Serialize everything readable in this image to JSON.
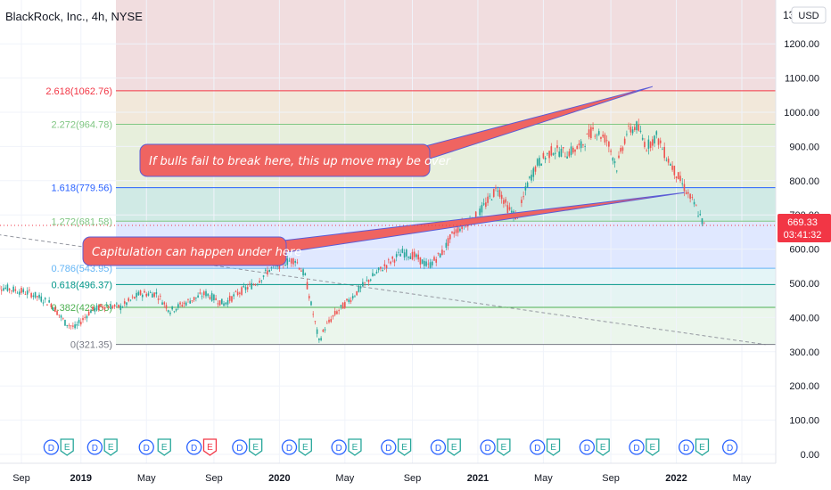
{
  "header": {
    "title": "BlackRock, Inc., 4h, NYSE",
    "currency_button": "USD",
    "currency_prefix": "13"
  },
  "colors": {
    "up": "#26a69a",
    "down": "#ef5350",
    "fib_0": "#787b86",
    "fib_0382": "#4caf50",
    "fib_0618": "#009688",
    "fib_0786": "#64b5f6",
    "fib_1272": "#81c784",
    "fib_1618": "#2962ff",
    "fib_2272": "#81c784",
    "fib_2618": "#f23645",
    "callout_fill": "#ef6461",
    "callout_border": "#5b5bd6",
    "price_tag": "#f23645",
    "dividend": "#2962ff",
    "earnings_up": "#26a69a",
    "earnings_down": "#f23645"
  },
  "chart_data": {
    "type": "line",
    "title": "BlackRock, Inc., 4h, NYSE",
    "xlabel": "",
    "ylabel": "",
    "ylim": [
      0,
      1350
    ],
    "xlim": [
      2018.7,
      2022.45
    ],
    "y_ticks": [
      0,
      100,
      200,
      300,
      400,
      500,
      600,
      700,
      800,
      900,
      1000,
      1100,
      1200
    ],
    "y_tick_labels": [
      "0.00",
      "100.00",
      "200.00",
      "300.00",
      "400.00",
      "500.00",
      "600.00",
      "700.00",
      "800.00",
      "900.00",
      "1000.00",
      "1100.00",
      "1200.00"
    ],
    "x_ticks": [
      {
        "t": 2018.7,
        "label": "Sep",
        "bold": false
      },
      {
        "t": 2019.0,
        "label": "2019",
        "bold": true
      },
      {
        "t": 2019.33,
        "label": "May",
        "bold": false
      },
      {
        "t": 2019.67,
        "label": "Sep",
        "bold": false
      },
      {
        "t": 2020.0,
        "label": "2020",
        "bold": true
      },
      {
        "t": 2020.33,
        "label": "May",
        "bold": false
      },
      {
        "t": 2020.67,
        "label": "Sep",
        "bold": false
      },
      {
        "t": 2021.0,
        "label": "2021",
        "bold": true
      },
      {
        "t": 2021.33,
        "label": "May",
        "bold": false
      },
      {
        "t": 2021.67,
        "label": "Sep",
        "bold": false
      },
      {
        "t": 2022.0,
        "label": "2022",
        "bold": true
      },
      {
        "t": 2022.33,
        "label": "May",
        "bold": false
      }
    ],
    "series": [
      {
        "name": "",
        "x": [
          2018.55,
          2018.75,
          2018.85,
          2018.92,
          2018.97,
          2019.05,
          2019.12,
          2019.2,
          2019.3,
          2019.38,
          2019.45,
          2019.55,
          2019.63,
          2019.72,
          2019.8,
          2019.88,
          2019.95,
          2020.02,
          2020.08,
          2020.13,
          2020.17,
          2020.2,
          2020.23,
          2020.28,
          2020.35,
          2020.45,
          2020.55,
          2020.62,
          2020.68,
          2020.75,
          2020.82,
          2020.88,
          2020.95,
          2021.0,
          2021.05,
          2021.1,
          2021.15,
          2021.2,
          2021.25,
          2021.3,
          2021.38,
          2021.45,
          2021.52,
          2021.58,
          2021.65,
          2021.7,
          2021.75,
          2021.8,
          2021.85,
          2021.9,
          2021.95,
          2022.0,
          2022.05,
          2022.1,
          2022.14
        ],
        "values": [
          495,
          470,
          440,
          385,
          370,
          420,
          435,
          430,
          470,
          470,
          420,
          450,
          470,
          440,
          475,
          500,
          540,
          560,
          570,
          520,
          410,
          330,
          370,
          410,
          450,
          510,
          560,
          590,
          580,
          550,
          590,
          650,
          680,
          700,
          740,
          780,
          720,
          690,
          790,
          850,
          890,
          880,
          900,
          950,
          920,
          840,
          940,
          960,
          900,
          930,
          870,
          820,
          770,
          720,
          669
        ]
      }
    ],
    "fib_levels": [
      {
        "ratio": 0,
        "label": "0(321.35)",
        "value": 321.35
      },
      {
        "ratio": 0.382,
        "label": "0.382(429.53)",
        "value": 429.53
      },
      {
        "ratio": 0.618,
        "label": "0.618(496.37)",
        "value": 496.37
      },
      {
        "ratio": 0.786,
        "label": "0.786(543.95)",
        "value": 543.95
      },
      {
        "ratio": 1.272,
        "label": "1.272(681.58)",
        "value": 681.58
      },
      {
        "ratio": 1.618,
        "label": "1.618(779.56)",
        "value": 779.56
      },
      {
        "ratio": 2.272,
        "label": "2.272(964.78)",
        "value": 964.78
      },
      {
        "ratio": 2.618,
        "label": "2.618(1062.76)",
        "value": 1062.76
      }
    ],
    "annotations": [
      {
        "text": "If bulls fail to break here, this up move may be over",
        "target": {
          "t": 2021.88,
          "v": 1075
        }
      },
      {
        "text": "Capitulation can happen under here",
        "target": {
          "t": 2022.04,
          "v": 765
        }
      }
    ],
    "last_price": {
      "value": 669.33,
      "label": "669.33",
      "countdown": "03:41:32"
    },
    "events": [
      {
        "t": 2018.85,
        "kind": "D"
      },
      {
        "t": 2018.93,
        "kind": "E"
      },
      {
        "t": 2019.07,
        "kind": "D"
      },
      {
        "t": 2019.15,
        "kind": "E"
      },
      {
        "t": 2019.33,
        "kind": "D"
      },
      {
        "t": 2019.42,
        "kind": "E"
      },
      {
        "t": 2019.57,
        "kind": "D"
      },
      {
        "t": 2019.65,
        "kind": "E",
        "negative": true
      },
      {
        "t": 2019.8,
        "kind": "D"
      },
      {
        "t": 2019.88,
        "kind": "E"
      },
      {
        "t": 2020.05,
        "kind": "D"
      },
      {
        "t": 2020.13,
        "kind": "E"
      },
      {
        "t": 2020.3,
        "kind": "D"
      },
      {
        "t": 2020.38,
        "kind": "E"
      },
      {
        "t": 2020.55,
        "kind": "D"
      },
      {
        "t": 2020.63,
        "kind": "E"
      },
      {
        "t": 2020.8,
        "kind": "D"
      },
      {
        "t": 2020.88,
        "kind": "E"
      },
      {
        "t": 2021.05,
        "kind": "D"
      },
      {
        "t": 2021.13,
        "kind": "E"
      },
      {
        "t": 2021.3,
        "kind": "D"
      },
      {
        "t": 2021.38,
        "kind": "E"
      },
      {
        "t": 2021.55,
        "kind": "D"
      },
      {
        "t": 2021.63,
        "kind": "E"
      },
      {
        "t": 2021.8,
        "kind": "D"
      },
      {
        "t": 2021.88,
        "kind": "E"
      },
      {
        "t": 2022.05,
        "kind": "D"
      },
      {
        "t": 2022.13,
        "kind": "E"
      },
      {
        "t": 2022.27,
        "kind": "D"
      }
    ],
    "trendline": {
      "from": {
        "t": 2018.55,
        "v": 645
      },
      "to": {
        "t": 2022.45,
        "v": 321
      }
    },
    "grid": true,
    "legend": "none"
  }
}
